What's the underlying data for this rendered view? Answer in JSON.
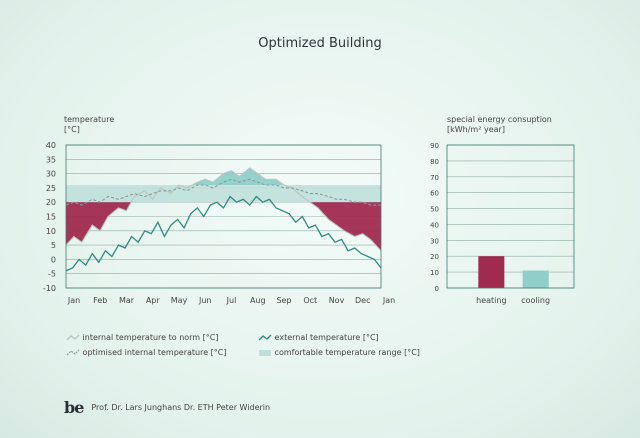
{
  "title": "Optimized Building",
  "chart_data": [
    {
      "type": "line",
      "ylabel_line1": "temperature",
      "ylabel_line2": "[°C]",
      "ylim": [
        -10,
        40
      ],
      "yticks": [
        "40",
        "35",
        "30",
        "25",
        "20",
        "15",
        "10",
        "5",
        "0",
        "-5",
        "-10"
      ],
      "categories": [
        "Jan",
        "Feb",
        "Mar",
        "Apr",
        "May",
        "Jun",
        "Jul",
        "Aug",
        "Sep",
        "Oct",
        "Nov",
        "Dec",
        "Jan"
      ],
      "comfort_range": [
        20,
        26
      ],
      "series": [
        {
          "name": "internal temperature to norm [°C]",
          "color": "#b9c6c3",
          "x": [
            0,
            0.3,
            0.6,
            1.0,
            1.3,
            1.6,
            2.0,
            2.3,
            2.6,
            3.0,
            3.3,
            3.6,
            4.0,
            4.3,
            4.6,
            5.0,
            5.3,
            5.6,
            6.0,
            6.3,
            6.6,
            7.0,
            7.3,
            7.6,
            8.0,
            8.3,
            8.6,
            9.0,
            9.3,
            9.6,
            10.0,
            10.3,
            10.6,
            11.0,
            11.3,
            11.6,
            12.0
          ],
          "y": [
            5,
            8,
            6,
            12,
            10,
            15,
            18,
            17,
            22,
            24,
            21,
            25,
            23,
            26,
            25,
            27,
            28,
            27,
            30,
            31,
            29,
            32,
            30,
            28,
            28,
            26,
            25,
            22,
            20,
            18,
            14,
            12,
            10,
            8,
            9,
            7,
            3
          ]
        },
        {
          "name": "optimised internal temperature [°C]",
          "color": "#8e9a97",
          "dash": true,
          "x": [
            0,
            0.3,
            0.6,
            1.0,
            1.3,
            1.6,
            2.0,
            2.3,
            2.6,
            3.0,
            3.3,
            3.6,
            4.0,
            4.3,
            4.6,
            5.0,
            5.3,
            5.6,
            6.0,
            6.3,
            6.6,
            7.0,
            7.3,
            7.6,
            8.0,
            8.3,
            8.6,
            9.0,
            9.3,
            9.6,
            10.0,
            10.3,
            10.6,
            11.0,
            11.3,
            11.6,
            12.0
          ],
          "y": [
            19,
            20,
            19,
            21,
            20,
            22,
            21,
            22,
            23,
            22,
            23,
            24,
            24,
            25,
            24,
            26,
            26,
            25,
            27,
            28,
            27,
            28,
            27,
            26,
            26,
            25,
            25,
            24,
            23,
            23,
            22,
            21,
            21,
            20,
            20,
            19,
            19
          ]
        },
        {
          "name": "external temperature [°C]",
          "color": "#2f8a7f",
          "x": [
            0,
            0.25,
            0.5,
            0.75,
            1.0,
            1.25,
            1.5,
            1.75,
            2.0,
            2.25,
            2.5,
            2.75,
            3.0,
            3.25,
            3.5,
            3.75,
            4.0,
            4.25,
            4.5,
            4.75,
            5.0,
            5.25,
            5.5,
            5.75,
            6.0,
            6.25,
            6.5,
            6.75,
            7.0,
            7.25,
            7.5,
            7.75,
            8.0,
            8.25,
            8.5,
            8.75,
            9.0,
            9.25,
            9.5,
            9.75,
            10.0,
            10.25,
            10.5,
            10.75,
            11.0,
            11.25,
            11.5,
            11.75,
            12.0
          ],
          "y": [
            -4,
            -3,
            0,
            -2,
            2,
            -1,
            3,
            1,
            5,
            4,
            8,
            6,
            10,
            9,
            13,
            8,
            12,
            14,
            11,
            16,
            18,
            15,
            19,
            20,
            18,
            22,
            20,
            21,
            19,
            22,
            20,
            21,
            18,
            17,
            16,
            13,
            15,
            11,
            12,
            8,
            9,
            6,
            7,
            3,
            4,
            2,
            1,
            0,
            -3
          ]
        }
      ],
      "heating_fill_color": "#a02a50",
      "cooling_fill_color": "#8fcfc8"
    },
    {
      "type": "bar",
      "ylabel_line1": "special energy consuption",
      "ylabel_line2": "[kWh/m² year]",
      "ylim": [
        0,
        90
      ],
      "yticks": [
        "90",
        "80",
        "70",
        "60",
        "50",
        "40",
        "30",
        "20",
        "10",
        "0"
      ],
      "categories": [
        "heating",
        "cooling"
      ],
      "values": [
        20,
        11
      ],
      "colors": [
        "#a02a50",
        "#8fcfc8"
      ]
    }
  ],
  "legend": {
    "item1": "internal temperature to norm [°C]",
    "item2": "optimised internal temperature [°C]",
    "item3": "external temperature [°C]",
    "item4": "comfortable temperature range [°C]"
  },
  "footer": {
    "logo": "be",
    "credits": "Prof. Dr. Lars Junghans  Dr. ETH Peter Widerin"
  }
}
